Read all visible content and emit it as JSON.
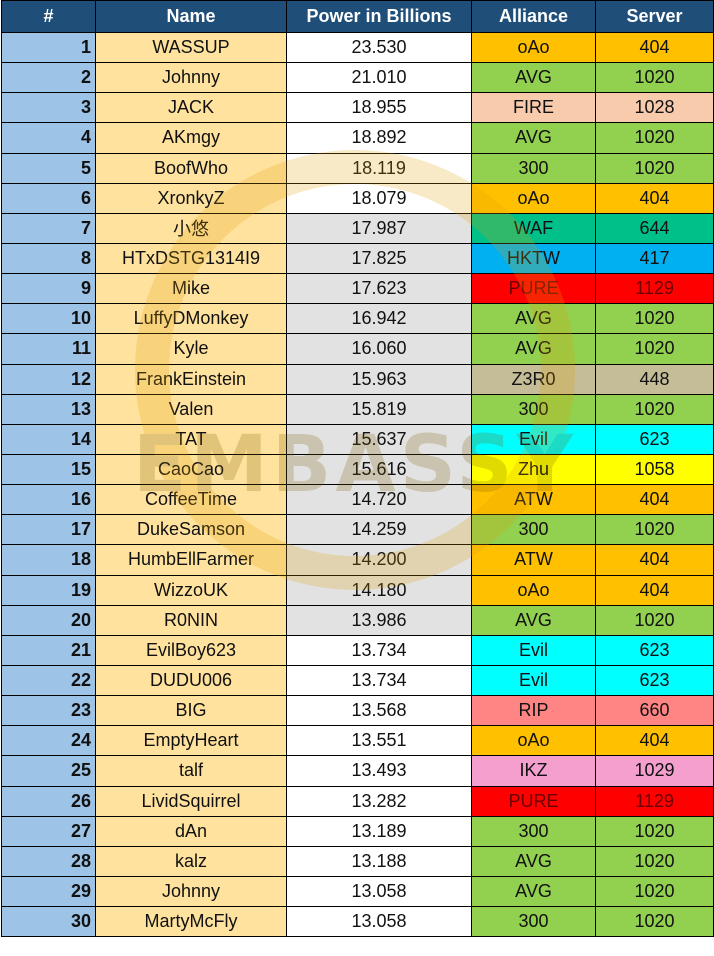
{
  "headers": {
    "rank": "#",
    "name": "Name",
    "power": "Power in Billions",
    "alliance": "Alliance",
    "server": "Server"
  },
  "watermark_text": "EMBASSY",
  "colors": {
    "header": "#1f4e79",
    "rank_cell": "#9dc3e6",
    "name_cell": "#ffe29e",
    "power_cell": "#ffffff",
    "power_cell_alt": "#e2e2e2",
    "oAo": "#ffc000",
    "AVG": "#92d050",
    "FIRE": "#f8cbad",
    "300": "#92d050",
    "WAF": "#00c08a",
    "HKTW": "#00b0f0",
    "PURE": "#ff0000",
    "Z3R0": "#c4bd97",
    "Evil": "#00ffff",
    "Zhu": "#ffff00",
    "ATW": "#ffc000",
    "RIP": "#ff8585",
    "IKZ": "#f59fcf"
  },
  "rows": [
    {
      "rank": "1",
      "name": "WASSUP",
      "power": "23.530",
      "alliance": "oAo",
      "server": "404"
    },
    {
      "rank": "2",
      "name": "Johnny",
      "power": "21.010",
      "alliance": "AVG",
      "server": "1020"
    },
    {
      "rank": "3",
      "name": "JACK",
      "power": "18.955",
      "alliance": "FIRE",
      "server": "1028"
    },
    {
      "rank": "4",
      "name": "AKmgy",
      "power": "18.892",
      "alliance": "AVG",
      "server": "1020"
    },
    {
      "rank": "5",
      "name": "BoofWho",
      "power": "18.119",
      "alliance": "300",
      "server": "1020"
    },
    {
      "rank": "6",
      "name": "XronkyZ",
      "power": "18.079",
      "alliance": "oAo",
      "server": "404"
    },
    {
      "rank": "7",
      "name": "小悠",
      "power": "17.987",
      "alliance": "WAF",
      "server": "644"
    },
    {
      "rank": "8",
      "name": "HTxDSTG1314I9",
      "power": "17.825",
      "alliance": "HKTW",
      "server": "417"
    },
    {
      "rank": "9",
      "name": "Mike",
      "power": "17.623",
      "alliance": "PURE",
      "server": "1129"
    },
    {
      "rank": "10",
      "name": "LuffyDMonkey",
      "power": "16.942",
      "alliance": "AVG",
      "server": "1020"
    },
    {
      "rank": "11",
      "name": "Kyle",
      "power": "16.060",
      "alliance": "AVG",
      "server": "1020"
    },
    {
      "rank": "12",
      "name": "FrankEinstein",
      "power": "15.963",
      "alliance": "Z3R0",
      "server": "448"
    },
    {
      "rank": "13",
      "name": "Valen",
      "power": "15.819",
      "alliance": "300",
      "server": "1020"
    },
    {
      "rank": "14",
      "name": "TAT",
      "power": "15.637",
      "alliance": "Evil",
      "server": "623"
    },
    {
      "rank": "15",
      "name": "CaoCao",
      "power": "15.616",
      "alliance": "Zhu",
      "server": "1058"
    },
    {
      "rank": "16",
      "name": "CoffeeTime",
      "power": "14.720",
      "alliance": "ATW",
      "server": "404"
    },
    {
      "rank": "17",
      "name": "DukeSamson",
      "power": "14.259",
      "alliance": "300",
      "server": "1020"
    },
    {
      "rank": "18",
      "name": "HumbEllFarmer",
      "power": "14.200",
      "alliance": "ATW",
      "server": "404"
    },
    {
      "rank": "19",
      "name": "WizzoUK",
      "power": "14.180",
      "alliance": "oAo",
      "server": "404"
    },
    {
      "rank": "20",
      "name": "R0NIN",
      "power": "13.986",
      "alliance": "AVG",
      "server": "1020"
    },
    {
      "rank": "21",
      "name": "EvilBoy623",
      "power": "13.734",
      "alliance": "Evil",
      "server": "623"
    },
    {
      "rank": "22",
      "name": "DUDU006",
      "power": "13.734",
      "alliance": "Evil",
      "server": "623"
    },
    {
      "rank": "23",
      "name": "BIG",
      "power": "13.568",
      "alliance": "RIP",
      "server": "660"
    },
    {
      "rank": "24",
      "name": "EmptyHeart",
      "power": "13.551",
      "alliance": "oAo",
      "server": "404"
    },
    {
      "rank": "25",
      "name": "talf",
      "power": "13.493",
      "alliance": "IKZ",
      "server": "1029"
    },
    {
      "rank": "26",
      "name": "LividSquirrel",
      "power": "13.282",
      "alliance": "PURE",
      "server": "1129"
    },
    {
      "rank": "27",
      "name": "dAn",
      "power": "13.189",
      "alliance": "300",
      "server": "1020"
    },
    {
      "rank": "28",
      "name": "kalz",
      "power": "13.188",
      "alliance": "AVG",
      "server": "1020"
    },
    {
      "rank": "29",
      "name": "Johnny",
      "power": "13.058",
      "alliance": "AVG",
      "server": "1020"
    },
    {
      "rank": "30",
      "name": "MartyMcFly",
      "power": "13.058",
      "alliance": "300",
      "server": "1020"
    }
  ]
}
